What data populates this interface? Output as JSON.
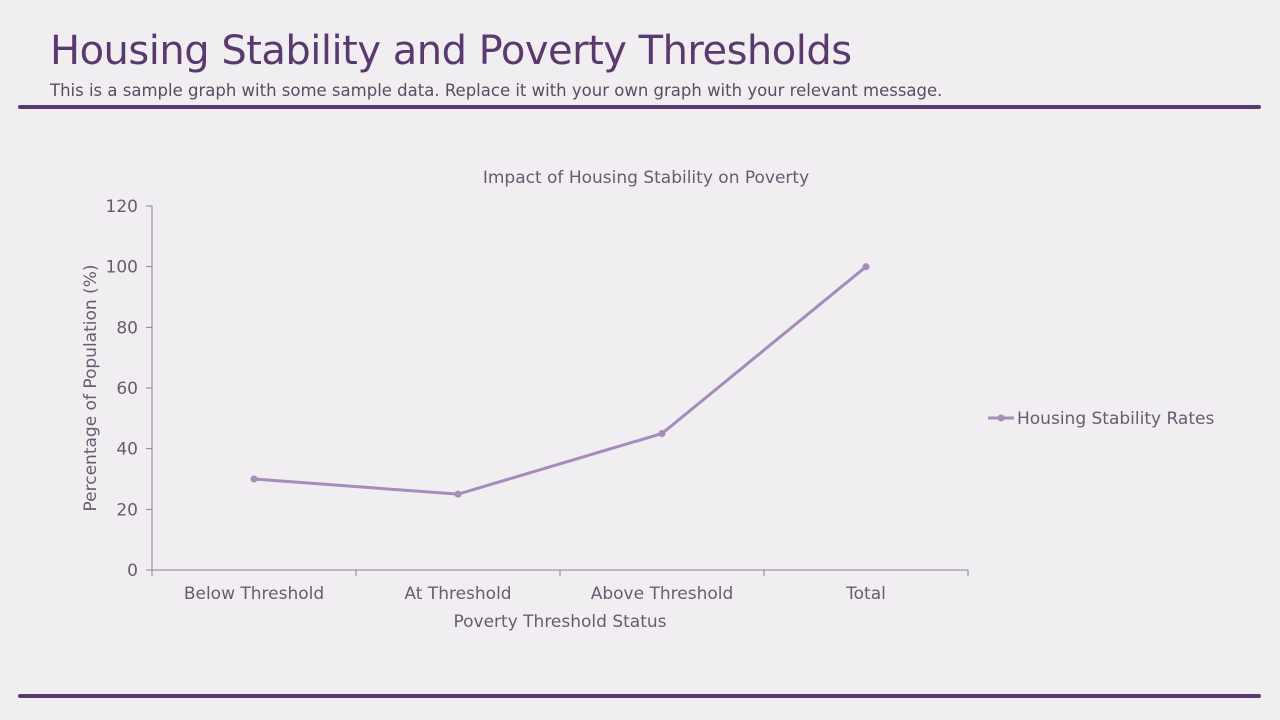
{
  "header": {
    "title": "Housing Stability and Poverty Thresholds",
    "subtitle": "This is a sample graph with some sample data. Replace it with your own graph with your relevant message."
  },
  "chart_data": {
    "type": "line",
    "title": "Impact of Housing Stability on Poverty",
    "xlabel": "Poverty Threshold Status",
    "ylabel": "Percentage of Population (%)",
    "categories": [
      "Below Threshold",
      "At Threshold",
      "Above Threshold",
      "Total"
    ],
    "series": [
      {
        "name": "Housing Stability Rates",
        "values": [
          30,
          25,
          45,
          100
        ],
        "color": "#a68bbd"
      }
    ],
    "ylim": [
      0,
      120
    ],
    "yticks": [
      0,
      20,
      40,
      60,
      80,
      100,
      120
    ],
    "grid": false,
    "legend": "right"
  },
  "colors": {
    "accent": "#5a3a6e",
    "background": "#f0eef1"
  }
}
